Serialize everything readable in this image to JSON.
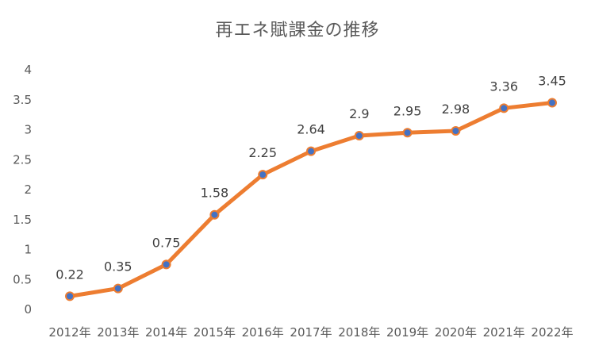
{
  "chart_data": {
    "type": "line",
    "title": "再エネ賦課金の推移",
    "categories": [
      "2012年",
      "2013年",
      "2014年",
      "2015年",
      "2016年",
      "2017年",
      "2018年",
      "2019年",
      "2020年",
      "2021年",
      "2022年"
    ],
    "series": [
      {
        "values": [
          0.22,
          0.35,
          0.75,
          1.58,
          2.25,
          2.64,
          2.9,
          2.95,
          2.98,
          3.36,
          3.45
        ],
        "data_labels": [
          "0.22",
          "0.35",
          "0.75",
          "1.58",
          "2.25",
          "2.64",
          "2.9",
          "2.95",
          "2.98",
          "3.36",
          "3.45"
        ],
        "line_color": "#ED7D31",
        "marker_color": "#4472C4"
      }
    ],
    "ylim": [
      0,
      4
    ],
    "yticks": [
      "0",
      "0.5",
      "1",
      "1.5",
      "2",
      "2.5",
      "3",
      "3.5",
      "4"
    ],
    "grid": false,
    "legend": "none"
  }
}
